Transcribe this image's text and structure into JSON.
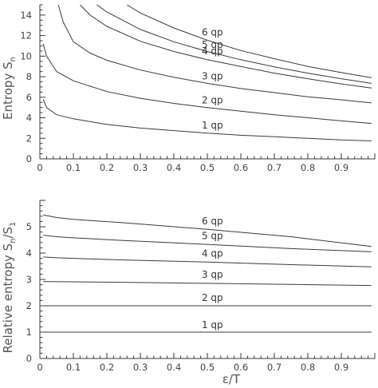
{
  "chart_data": [
    {
      "type": "line",
      "ylabel": "Entropy S",
      "ylabel_sub": "n",
      "xlim": [
        0,
        1
      ],
      "ylim": [
        0,
        15
      ],
      "xticks": [
        0,
        0.1,
        0.2,
        0.3,
        0.4,
        0.5,
        0.6,
        0.7,
        0.8,
        0.9
      ],
      "xtick_labels": [
        "0",
        "0.1",
        "0.2",
        "0.3",
        "0.4",
        "0.5",
        "0.6",
        "0.7",
        "0.8",
        "0.9"
      ],
      "yticks": [
        0,
        2,
        4,
        6,
        8,
        10,
        12,
        14
      ],
      "ytick_labels": [
        "0",
        "2",
        "4",
        "6",
        "8",
        "10",
        "12",
        "14"
      ],
      "series": [
        {
          "name": "1 qp",
          "x": [
            0.01,
            0.02,
            0.05,
            0.1,
            0.2,
            0.3,
            0.4,
            0.5,
            0.6,
            0.7,
            0.8,
            0.9,
            0.99
          ],
          "values": [
            5.8,
            5.0,
            4.3,
            3.9,
            3.35,
            3.0,
            2.75,
            2.5,
            2.3,
            2.15,
            2.0,
            1.85,
            1.75
          ]
        },
        {
          "name": "2 qp",
          "x": [
            0.01,
            0.02,
            0.05,
            0.1,
            0.2,
            0.3,
            0.4,
            0.5,
            0.6,
            0.7,
            0.8,
            0.9,
            0.99
          ],
          "values": [
            11.2,
            10.0,
            8.5,
            7.6,
            6.55,
            5.9,
            5.4,
            5.0,
            4.65,
            4.3,
            4.0,
            3.7,
            3.45
          ]
        },
        {
          "name": "3 qp",
          "x": [
            0.055,
            0.07,
            0.1,
            0.15,
            0.2,
            0.3,
            0.4,
            0.5,
            0.6,
            0.7,
            0.8,
            0.9,
            0.99
          ],
          "values": [
            15.0,
            13.3,
            11.4,
            10.3,
            9.6,
            8.65,
            7.95,
            7.35,
            6.85,
            6.45,
            6.05,
            5.75,
            5.45
          ]
        },
        {
          "name": "4 qp",
          "x": [
            0.12,
            0.15,
            0.2,
            0.3,
            0.4,
            0.5,
            0.6,
            0.7,
            0.8,
            0.9,
            0.99
          ],
          "values": [
            15.0,
            14.0,
            12.9,
            11.45,
            10.45,
            9.65,
            9.0,
            8.35,
            7.8,
            7.3,
            6.9
          ]
        },
        {
          "name": "5 qp",
          "x": [
            0.17,
            0.2,
            0.3,
            0.4,
            0.5,
            0.6,
            0.7,
            0.8,
            0.9,
            0.99
          ],
          "values": [
            15.0,
            14.3,
            12.6,
            11.4,
            10.45,
            9.65,
            8.95,
            8.35,
            7.8,
            7.35
          ]
        },
        {
          "name": "6 qp",
          "x": [
            0.26,
            0.3,
            0.4,
            0.5,
            0.6,
            0.7,
            0.8,
            0.9,
            0.99
          ],
          "values": [
            15.0,
            14.2,
            12.75,
            11.55,
            10.55,
            9.75,
            9.0,
            8.4,
            7.9
          ]
        }
      ]
    },
    {
      "type": "line",
      "xlabel": "ε/T",
      "ylabel": "Relative entropy S",
      "ylabel_sub1": "n",
      "ylabel_mid": "/S",
      "ylabel_sub2": "1",
      "xlim": [
        0,
        1
      ],
      "ylim": [
        0,
        6
      ],
      "xticks": [
        0,
        0.1,
        0.2,
        0.3,
        0.4,
        0.5,
        0.6,
        0.7,
        0.8,
        0.9
      ],
      "xtick_labels": [
        "0",
        "0.1",
        "0.2",
        "0.3",
        "0.4",
        "0.5",
        "0.6",
        "0.7",
        "0.8",
        "0.9"
      ],
      "yticks": [
        0,
        1,
        2,
        3,
        4,
        5
      ],
      "ytick_labels": [
        "0",
        "1",
        "2",
        "3",
        "4",
        "5"
      ],
      "series": [
        {
          "name": "1 qp",
          "x": [
            0.01,
            0.99
          ],
          "values": [
            1.0,
            1.0
          ]
        },
        {
          "name": "2 qp",
          "x": [
            0.01,
            0.99
          ],
          "values": [
            2.0,
            2.0
          ]
        },
        {
          "name": "3 qp",
          "x": [
            0.01,
            0.25,
            0.5,
            0.75,
            0.99
          ],
          "values": [
            2.92,
            2.89,
            2.85,
            2.81,
            2.77
          ]
        },
        {
          "name": "4 qp",
          "x": [
            0.01,
            0.05,
            0.1,
            0.25,
            0.5,
            0.75,
            0.99
          ],
          "values": [
            3.85,
            3.82,
            3.8,
            3.74,
            3.66,
            3.56,
            3.48
          ]
        },
        {
          "name": "5 qp",
          "x": [
            0.01,
            0.05,
            0.1,
            0.25,
            0.5,
            0.75,
            0.99
          ],
          "values": [
            4.68,
            4.62,
            4.58,
            4.48,
            4.33,
            4.17,
            4.05
          ]
        },
        {
          "name": "6 qp",
          "x": [
            0.01,
            0.05,
            0.1,
            0.25,
            0.5,
            0.75,
            0.99
          ],
          "values": [
            5.45,
            5.35,
            5.28,
            5.15,
            4.9,
            4.62,
            4.25
          ]
        }
      ]
    }
  ]
}
